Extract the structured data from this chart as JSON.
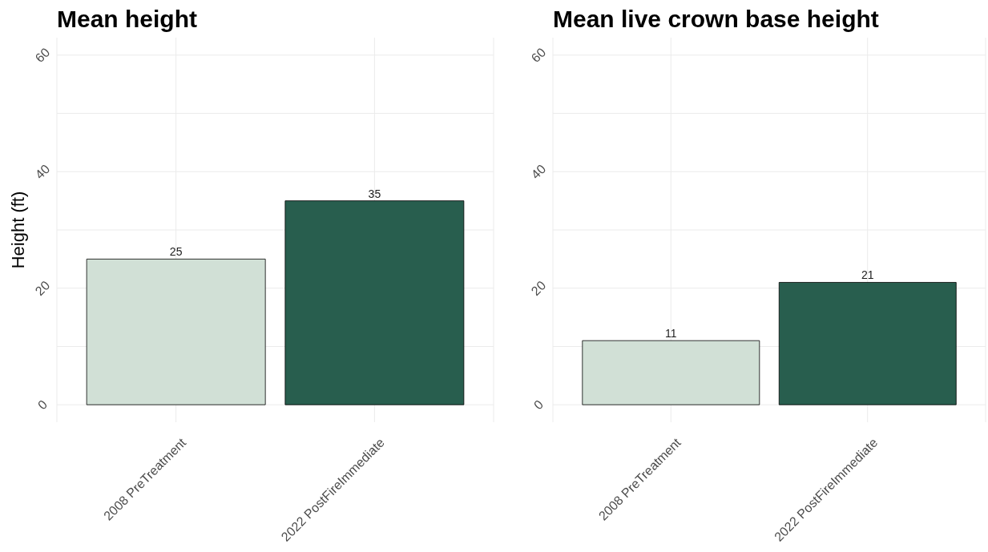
{
  "chart_data": [
    {
      "type": "bar",
      "title": "Mean height",
      "ylabel": "Height (ft)",
      "categories": [
        "2008 PreTreatment",
        "2022 PostFireImmediate"
      ],
      "values": [
        25,
        35
      ],
      "colors": [
        "#d1e0d6",
        "#285e4e"
      ],
      "ylim": [
        -3,
        63
      ],
      "yticks": [
        0,
        20,
        40,
        60
      ],
      "grid": true,
      "data_labels": true
    },
    {
      "type": "bar",
      "title": "Mean live crown base height",
      "categories": [
        "2008 PreTreatment",
        "2022 PostFireImmediate"
      ],
      "values": [
        11,
        21
      ],
      "colors": [
        "#d1e0d6",
        "#285e4e"
      ],
      "ylim": [
        -3,
        63
      ],
      "yticks": [
        0,
        20,
        40,
        60
      ],
      "grid": true,
      "data_labels": true
    }
  ]
}
